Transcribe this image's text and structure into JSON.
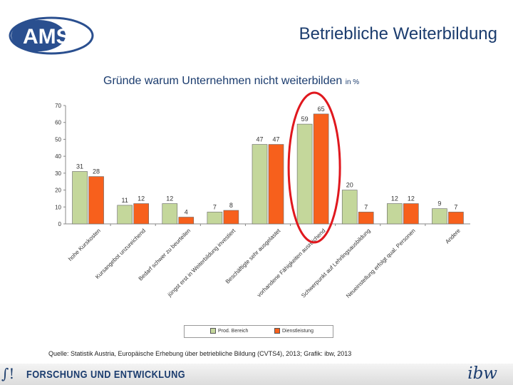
{
  "header": {
    "logo_text": "AMS",
    "title": "Betriebliche Weiterbildung"
  },
  "colors": {
    "series_1": "#c4d79b",
    "series_2": "#f7601c",
    "highlight": "#e0181e",
    "brand_blue": "#1b3c6e",
    "logo_red": "#e2231a"
  },
  "chart_data": {
    "type": "bar",
    "title": "Gründe warum Unternehmen nicht weiterbilden",
    "title_unit": "in %",
    "categories": [
      "hohe Kurskosten",
      "Kursangebot unzureichend",
      "Bedarf schwer zu beurteilen",
      "jüngst erst in Weiterbildung investiert",
      "Beschäftigte sehr ausgelastet",
      "vorhandene Fähigkeiten ausreichend",
      "Schwerpunkt auf Lehrlingsausbildung",
      "Neueinstellung erfolgt qual. Personen",
      "Andere"
    ],
    "series": [
      {
        "name": "Prod. Bereich",
        "values": [
          31,
          11,
          12,
          7,
          47,
          59,
          20,
          12,
          9
        ]
      },
      {
        "name": "Dienstleistung",
        "values": [
          28,
          12,
          4,
          8,
          47,
          65,
          7,
          12,
          7
        ]
      }
    ],
    "y_ticks": [
      "0",
      "10",
      "20",
      "30",
      "40",
      "50",
      "60",
      "70"
    ],
    "ylim": [
      0,
      70
    ],
    "highlighted_category": "vorhandene Fähigkeiten ausreichend",
    "legend_position": "bottom",
    "grid": false
  },
  "source": "Quelle: Statistik Austria, Europäische Erhebung über betriebliche Bildung (CVTS4), 2013; Grafik: ibw, 2013",
  "footer": {
    "left_mark": "∫!",
    "text": "FORSCHUNG UND ENTWICKLUNG",
    "brand": "ibw"
  }
}
